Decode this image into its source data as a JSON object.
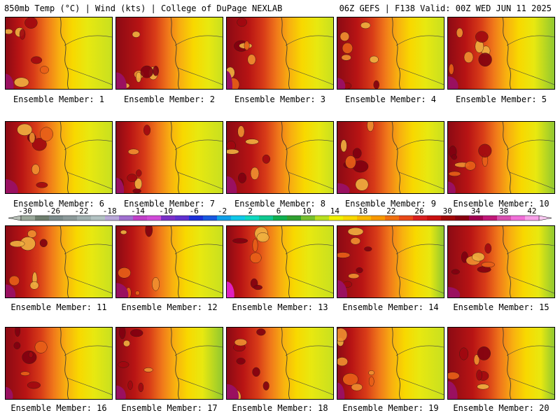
{
  "header": {
    "left": "850mb Temp (°C) | Wind (kts) | College of DuPage NEXLAB",
    "right": "06Z GEFS | F138 Valid: 00Z WED JUN 11 2025"
  },
  "caption_prefix": "Ensemble Member:",
  "members": [
    1,
    2,
    3,
    4,
    5,
    6,
    7,
    8,
    9,
    10,
    11,
    12,
    13,
    14,
    15,
    16,
    17,
    18,
    19,
    20
  ],
  "colorbar": {
    "labels": [
      "-30",
      "-26",
      "-22",
      "-18",
      "-14",
      "-10",
      "-6",
      "-2",
      "2",
      "6",
      "10",
      "14",
      "18",
      "22",
      "26",
      "30",
      "34",
      "38",
      "42"
    ],
    "colors": [
      "#9aa89a",
      "#6e7e6e",
      "#7c8c8c",
      "#8c9a9a",
      "#a0b0b0",
      "#b2c2c2",
      "#b8a8d8",
      "#a070d0",
      "#c040c8",
      "#d04ad8",
      "#7b30c8",
      "#6030d0",
      "#1c30d8",
      "#1858e0",
      "#10a0e8",
      "#10c8e8",
      "#10d8c0",
      "#10c890",
      "#10b050",
      "#30a030",
      "#78c030",
      "#b8e020",
      "#f0f000",
      "#f8d800",
      "#f8b800",
      "#f89800",
      "#f07010",
      "#e84818",
      "#d82020",
      "#c81010",
      "#a00808",
      "#880010",
      "#a00050",
      "#c01878",
      "#d850b0",
      "#f070d8",
      "#f8a0e8"
    ]
  }
}
